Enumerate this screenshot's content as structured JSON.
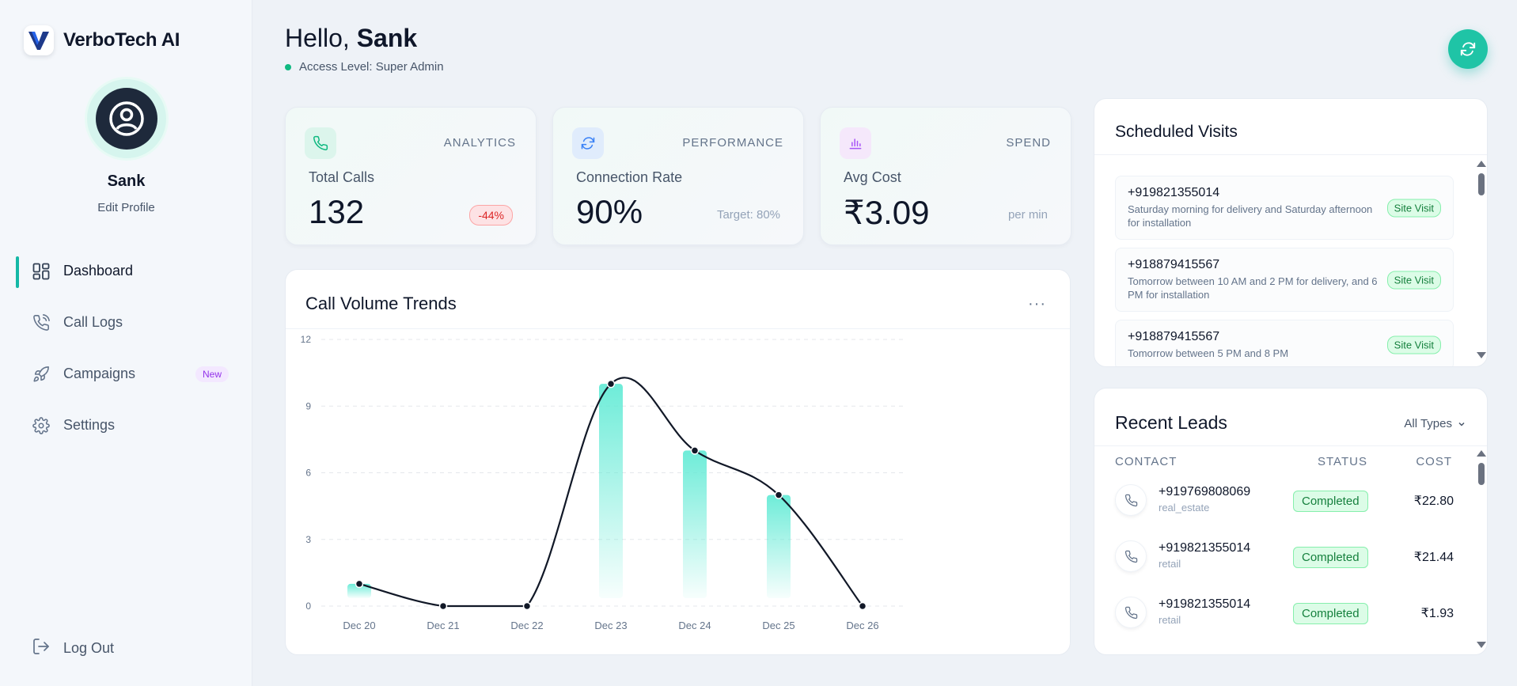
{
  "brand": {
    "name": "VerboTech AI",
    "logo_icon": "v-logo-icon",
    "accent": "#1e3a8a"
  },
  "profile": {
    "name": "Sank",
    "edit_label": "Edit Profile"
  },
  "nav": {
    "items": [
      {
        "label": "Dashboard",
        "icon": "dashboard-icon",
        "active": true
      },
      {
        "label": "Call Logs",
        "icon": "phone-icon"
      },
      {
        "label": "Campaigns",
        "icon": "rocket-icon",
        "badge": "New"
      },
      {
        "label": "Settings",
        "icon": "gear-icon"
      }
    ],
    "logout_label": "Log Out"
  },
  "header": {
    "greeting": "Hello,",
    "user": "Sank",
    "access": "Access Level: Super Admin"
  },
  "stats": [
    {
      "tag": "ANALYTICS",
      "label": "Total Calls",
      "value": "132",
      "change": "-44%",
      "icon": "phone-icon",
      "icon_bg": "#dcf5ec",
      "icon_color": "#10b981"
    },
    {
      "tag": "PERFORMANCE",
      "label": "Connection Rate",
      "value": "90%",
      "note": "Target: 80%",
      "icon": "refresh-icon",
      "icon_bg": "#e0ecfc",
      "icon_color": "#3b82f6"
    },
    {
      "tag": "SPEND",
      "label": "Avg Cost",
      "value": "₹3.09",
      "note": "per min",
      "icon": "bar-chart-icon",
      "icon_bg": "#f5e8fb",
      "icon_color": "#a855f7"
    }
  ],
  "chart": {
    "title": "Call Volume Trends",
    "more": "···"
  },
  "chart_data": {
    "type": "line",
    "categories": [
      "Dec 20",
      "Dec 21",
      "Dec 22",
      "Dec 23",
      "Dec 24",
      "Dec 25",
      "Dec 26"
    ],
    "values": [
      1,
      0,
      0,
      10,
      7,
      5,
      0
    ],
    "yticks": [
      0,
      3,
      6,
      9,
      12
    ],
    "ylim": [
      0,
      12
    ],
    "grid": true,
    "line_color": "#111827",
    "bar_color": "#5eead4"
  },
  "visits": {
    "title": "Scheduled Visits",
    "items": [
      {
        "phone": "+919821355014",
        "desc": "Saturday morning for delivery and Saturday afternoon for installation",
        "tag": "Site Visit"
      },
      {
        "phone": "+918879415567",
        "desc": "Tomorrow between 10 AM and 2 PM for delivery, and 6 PM for installation",
        "tag": "Site Visit"
      },
      {
        "phone": "+918879415567",
        "desc": "Tomorrow between 5 PM and 8 PM",
        "tag": "Site Visit"
      }
    ]
  },
  "leads": {
    "title": "Recent Leads",
    "filter": "All Types",
    "columns": {
      "contact": "CONTACT",
      "status": "STATUS",
      "cost": "COST"
    },
    "rows": [
      {
        "phone": "+919769808069",
        "type": "real_estate",
        "status": "Completed",
        "cost": "₹22.80"
      },
      {
        "phone": "+919821355014",
        "type": "retail",
        "status": "Completed",
        "cost": "₹21.44"
      },
      {
        "phone": "+919821355014",
        "type": "retail",
        "status": "Completed",
        "cost": "₹1.93"
      }
    ]
  }
}
